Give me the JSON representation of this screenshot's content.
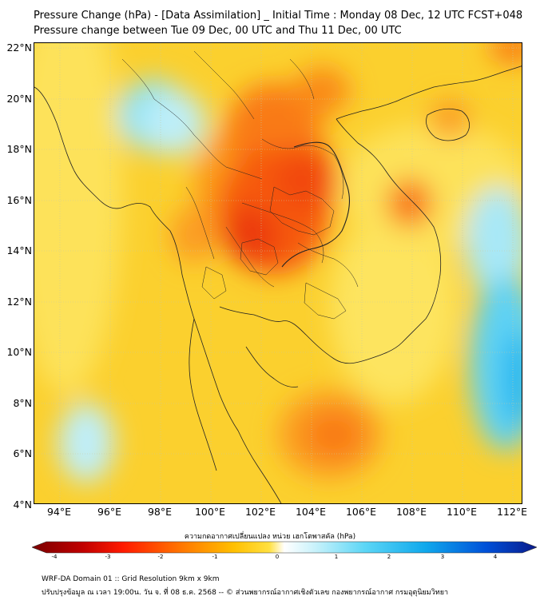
{
  "title_line1": "Pressure Change (hPa) - [Data Assimilation] _ Initial Time : Monday 08 Dec, 12 UTC FCST+048",
  "title_line2": "Pressure change between Tue 09 Dec, 00 UTC and Thu 11 Dec, 00 UTC",
  "lat_ticks": [
    "22°N",
    "20°N",
    "18°N",
    "16°N",
    "14°N",
    "12°N",
    "10°N",
    "8°N",
    "6°N",
    "4°N"
  ],
  "lon_ticks": [
    "94°E",
    "96°E",
    "98°E",
    "100°E",
    "102°E",
    "104°E",
    "106°E",
    "108°E",
    "110°E",
    "112°E"
  ],
  "colorbar": {
    "label": "ความกดอากาศเปลี่ยนแปลง หน่วย เฮกโตพาสคัล (hPa)",
    "ticks": [
      "-4",
      "-3",
      "-2",
      "-1",
      "0",
      "1",
      "2",
      "3",
      "4"
    ],
    "range": [
      -4,
      4
    ]
  },
  "footer_line1": "WRF-DA Domain 01 :: Grid Resolution 9km x 9km",
  "footer_line2": "ปรับปรุงข้อมูล ณ เวลา 19:00น. วัน จ. ที่ 08 ธ.ค. 2568 -- © ส่วนพยากรณ์อากาศเชิงตัวเลข กองพยากรณ์อากาศ กรมอุตุนิยมวิทยา"
}
